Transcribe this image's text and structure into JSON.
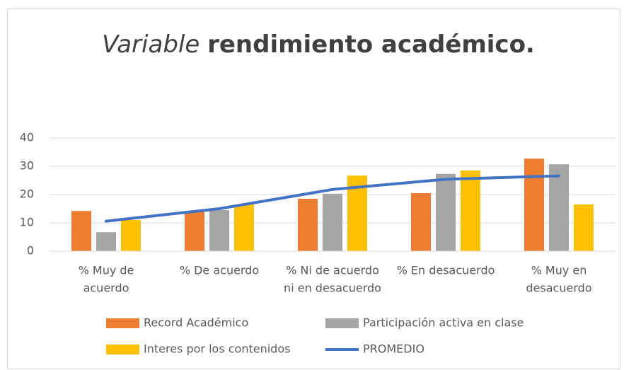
{
  "chart_data": {
    "type": "bar",
    "title": [
      "Variable",
      "rendimiento académico."
    ],
    "categories": [
      [
        "% Muy de",
        "acuerdo"
      ],
      [
        "% De acuerdo"
      ],
      [
        "% Ni de acuerdo",
        "ni en desacuerdo"
      ],
      [
        "% En desacuerdo"
      ],
      [
        "% Muy en",
        "desacuerdo"
      ]
    ],
    "series": [
      {
        "name": "Record Académico",
        "color": "#ed7d31",
        "values": [
          14.2,
          14,
          18.5,
          20.5,
          32.7
        ]
      },
      {
        "name": "Participación activa en clase",
        "color": "#a5a5a5",
        "values": [
          6.7,
          14.5,
          20.3,
          27.3,
          30.7
        ]
      },
      {
        "name": "Interes por los contenidos",
        "color": "#ffc000",
        "values": [
          11,
          16.5,
          26.7,
          28.5,
          16.5
        ]
      },
      {
        "name": "PROMEDIO",
        "color": "#4472c4",
        "type": "line",
        "values": [
          10.6,
          15,
          21.8,
          25.4,
          26.6
        ]
      }
    ],
    "ylim": [
      0,
      40
    ],
    "yticks": [
      0,
      10,
      20,
      30,
      40
    ],
    "grid": true
  }
}
